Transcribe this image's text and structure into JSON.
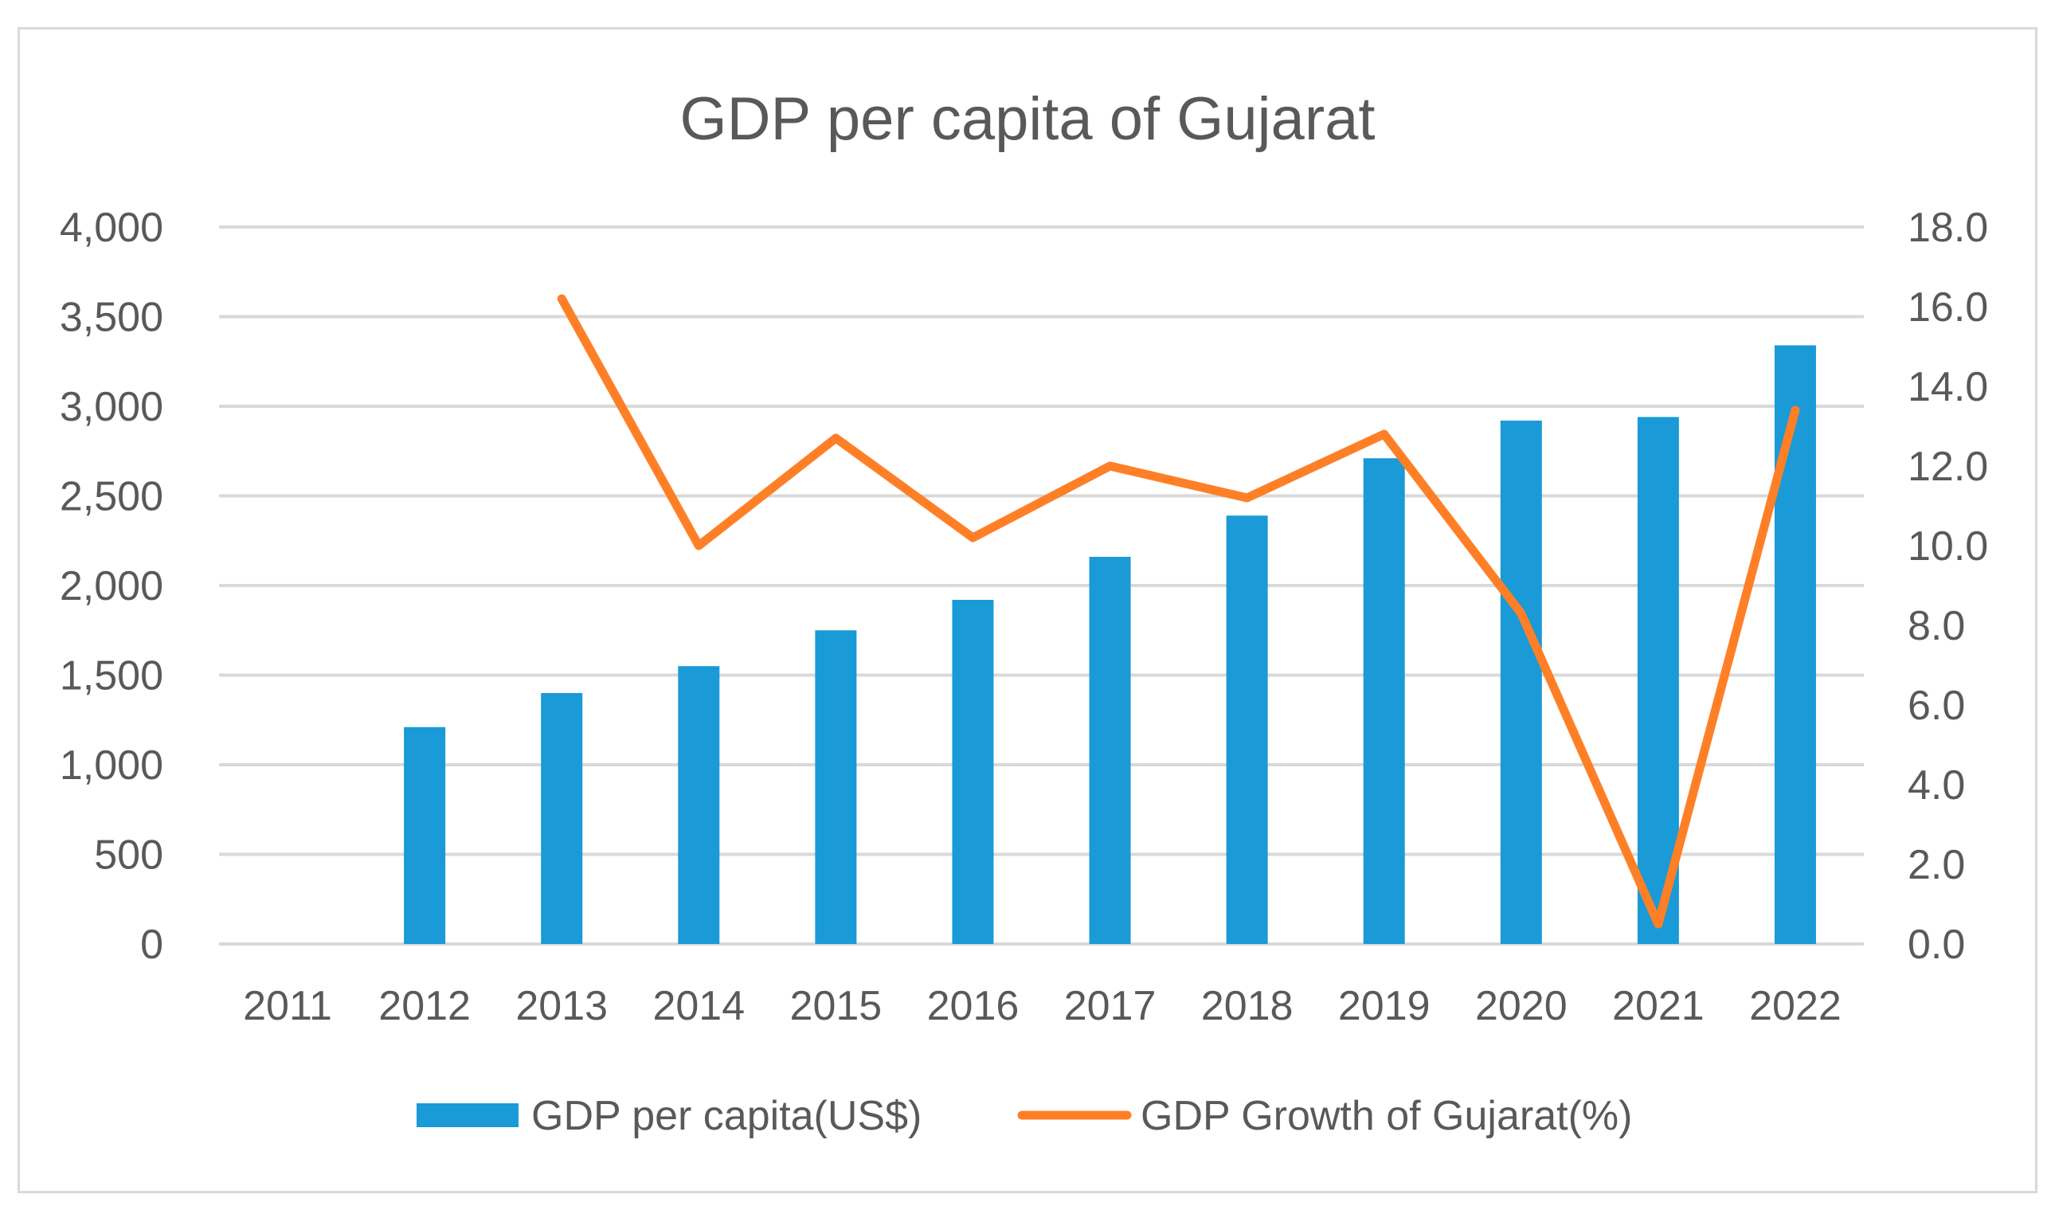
{
  "chart_data": {
    "type": "bar+line",
    "title": "GDP per capita of Gujarat",
    "categories": [
      "2011",
      "2012",
      "2013",
      "2014",
      "2015",
      "2016",
      "2017",
      "2018",
      "2019",
      "2020",
      "2021",
      "2022"
    ],
    "series": [
      {
        "name": "GDP per capita(US$)",
        "type": "bar",
        "axis": "left",
        "values": [
          null,
          1210,
          1400,
          1550,
          1750,
          1920,
          2160,
          2390,
          2710,
          2920,
          2940,
          3340
        ]
      },
      {
        "name": "GDP Growth of Gujarat(%)",
        "type": "line",
        "axis": "right",
        "values": [
          null,
          null,
          16.2,
          10.0,
          12.7,
          10.2,
          12.0,
          11.2,
          12.8,
          8.3,
          0.5,
          13.4
        ]
      }
    ],
    "left_axis": {
      "ylim": [
        0,
        4000
      ],
      "ticks": [
        0,
        500,
        1000,
        1500,
        2000,
        2500,
        3000,
        3500,
        4000
      ],
      "tick_labels": [
        "0",
        "500",
        "1,000",
        "1,500",
        "2,000",
        "2,500",
        "3,000",
        "3,500",
        "4,000"
      ]
    },
    "right_axis": {
      "ylim": [
        0,
        18
      ],
      "ticks": [
        0,
        2,
        4,
        6,
        8,
        10,
        12,
        14,
        16,
        18
      ],
      "tick_labels": [
        "0.0",
        "2.0",
        "4.0",
        "6.0",
        "8.0",
        "10.0",
        "12.0",
        "14.0",
        "16.0",
        "18.0"
      ]
    },
    "grid": true,
    "legend": "bottom",
    "colors": {
      "bar": "#1a9ad6",
      "line": "#ff7f27",
      "grid": "#d9d9d9",
      "text": "#595959"
    }
  }
}
